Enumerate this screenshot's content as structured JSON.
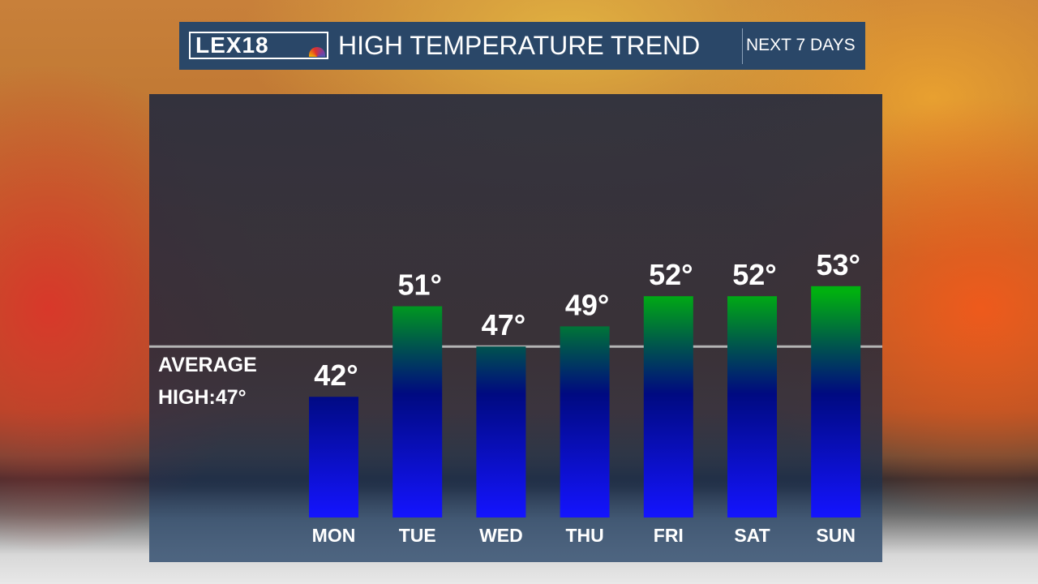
{
  "header": {
    "logo": "LEX18",
    "title": "HIGH TEMPERATURE TREND",
    "subtitle": "NEXT 7 DAYS"
  },
  "average": {
    "line1": "AVERAGE",
    "line2": "HIGH:47°"
  },
  "chart_data": {
    "type": "bar",
    "categories": [
      "MON",
      "TUE",
      "WED",
      "THU",
      "FRI",
      "SAT",
      "SUN"
    ],
    "values": [
      42,
      51,
      47,
      49,
      52,
      52,
      53
    ],
    "labels": [
      "42°",
      "51°",
      "47°",
      "49°",
      "52°",
      "52°",
      "53°"
    ],
    "reference_line": {
      "label": "AVERAGE HIGH:47°",
      "value": 47
    },
    "unit": "°F",
    "colors": {
      "bottom": "#1414ff",
      "middle": "#000a80",
      "top": "#00b010",
      "avg_line": "#b4b4b4"
    }
  }
}
